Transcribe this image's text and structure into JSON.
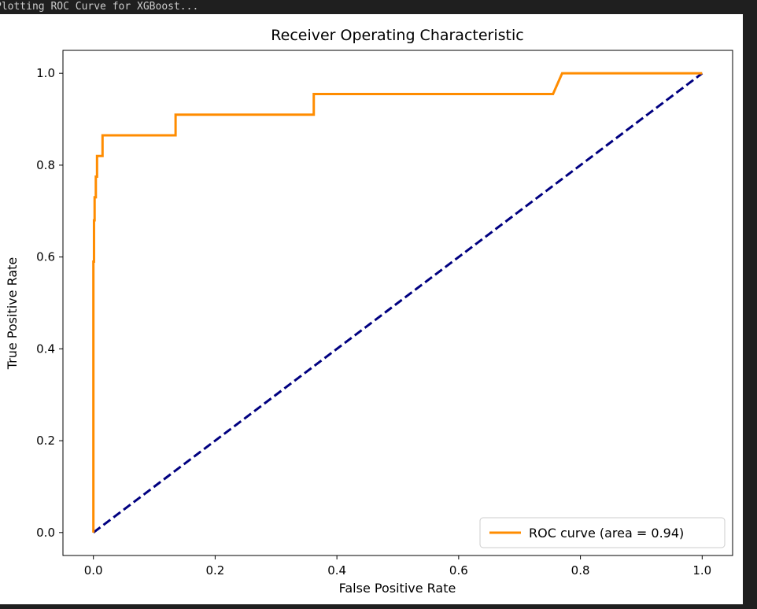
{
  "console": {
    "output_line": "Plotting ROC Curve for XGBoost..."
  },
  "chart_data": {
    "type": "line",
    "title": "Receiver Operating Characteristic",
    "xlabel": "False Positive Rate",
    "ylabel": "True Positive Rate",
    "xlim": [
      -0.05,
      1.05
    ],
    "ylim": [
      -0.05,
      1.05
    ],
    "xticks": [
      "0.0",
      "0.2",
      "0.4",
      "0.6",
      "0.8",
      "1.0"
    ],
    "yticks": [
      "0.0",
      "0.2",
      "0.4",
      "0.6",
      "0.8",
      "1.0"
    ],
    "grid": false,
    "legend": {
      "position": "lower right",
      "entries": [
        "ROC curve (area = 0.94)"
      ]
    },
    "series": [
      {
        "name": "ROC curve (area = 0.94)",
        "color": "#ff8c00",
        "style": "solid",
        "x": [
          0.0,
          0.0,
          0.001,
          0.001,
          0.002,
          0.002,
          0.004,
          0.004,
          0.006,
          0.006,
          0.015,
          0.015,
          0.135,
          0.135,
          0.362,
          0.362,
          0.755,
          0.77,
          1.0
        ],
        "y": [
          0.0,
          0.59,
          0.59,
          0.68,
          0.68,
          0.73,
          0.73,
          0.775,
          0.775,
          0.82,
          0.82,
          0.865,
          0.865,
          0.91,
          0.91,
          0.955,
          0.955,
          1.0,
          1.0
        ]
      },
      {
        "name": "",
        "color": "#000080",
        "style": "dashed",
        "x": [
          0.0,
          1.0
        ],
        "y": [
          0.0,
          1.0
        ]
      }
    ]
  }
}
